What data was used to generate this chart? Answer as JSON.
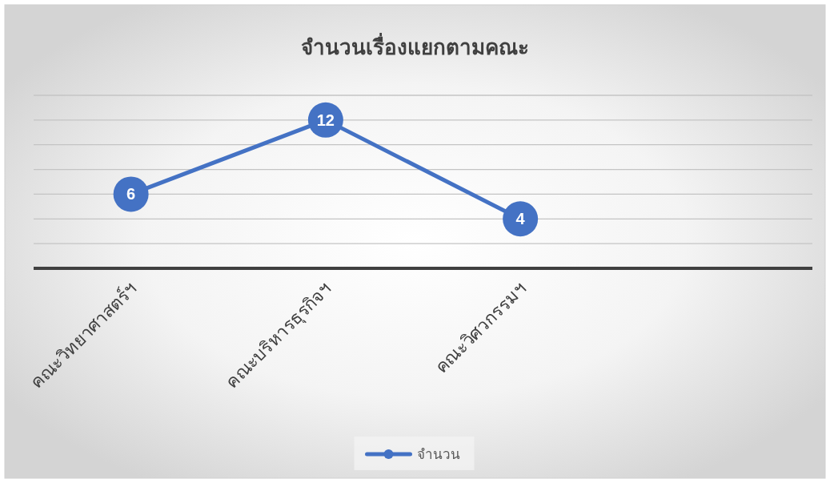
{
  "chart_data": {
    "type": "line",
    "title": "จำนวนเรื่องแยกตามคณะ",
    "categories": [
      "คณะวิทยาศาสตร์ฯ",
      "คณะบริหารธุรกิจฯ",
      "คณะวิศวกรรมฯ",
      null
    ],
    "series": [
      {
        "name": "จำนวน",
        "color": "#4472c4",
        "values": [
          6,
          12,
          4,
          null
        ]
      }
    ],
    "ylim": [
      0,
      14
    ],
    "yticks": [
      {
        "value": 0,
        "label": null
      },
      {
        "value": 2,
        "label": null
      },
      {
        "value": 4,
        "label": null
      },
      {
        "value": 6,
        "label": null
      },
      {
        "value": 8,
        "label": null
      },
      {
        "value": 10,
        "label": null
      },
      {
        "value": 12,
        "label": null
      },
      {
        "value": 14,
        "label": null
      }
    ],
    "grid": "y",
    "legend": "bottom",
    "tick_labels": "x",
    "data_labels": true,
    "line_style": "solid"
  }
}
